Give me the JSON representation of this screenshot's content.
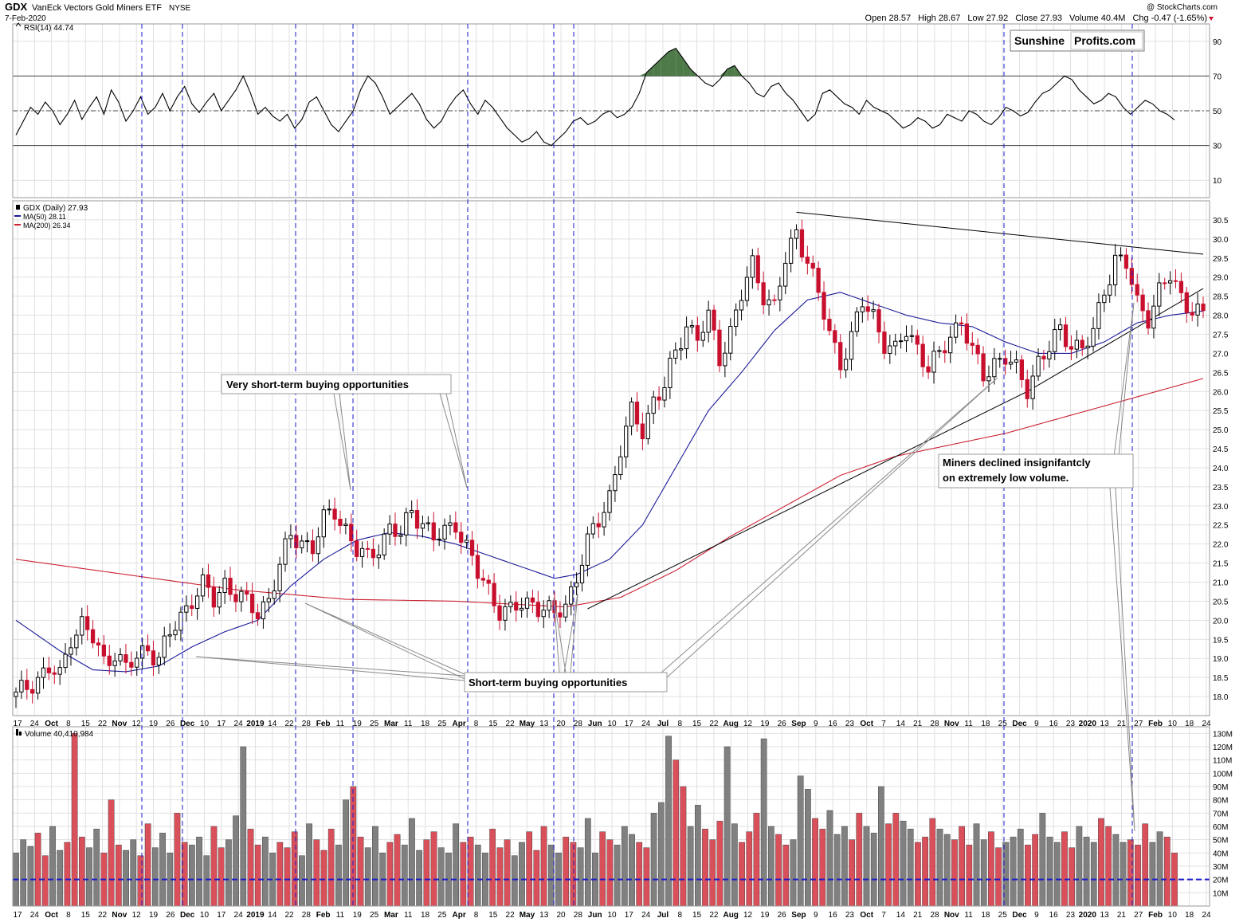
{
  "header": {
    "symbol": "GDX",
    "name": "VanEck Vectors Gold Miners ETF",
    "exchange": "NYSE",
    "date": "7-Feb-2020",
    "watermark": "@ StockCharts.com",
    "open_label": "Open",
    "open": "28.57",
    "high_label": "High",
    "high": "28.67",
    "low_label": "Low",
    "low": "27.92",
    "close_label": "Close",
    "close": "27.93",
    "volume_label": "Volume",
    "volume": "40.4M",
    "chg_label": "Chg",
    "chg": "-0.47 (-1.65%)"
  },
  "brand": {
    "part1": "Sunshine",
    "part2": "Profits.com",
    "color1": "#c8102e",
    "color2": "#000000"
  },
  "colors": {
    "up": "#000000",
    "down": "#c8102e",
    "ma50": "#1a1a99",
    "ma200": "#cc2233",
    "rsi_fill": "#4e7a4a",
    "vol_up": "#808080",
    "vol_down": "#d9505a",
    "vline": "#1a1acc"
  },
  "chart_data": [
    {
      "type": "line",
      "panel": "rsi",
      "legend": "RSI(14) 44.74",
      "ylim": [
        0,
        100
      ],
      "y_ticks": [
        10,
        30,
        50,
        70,
        90
      ],
      "levels": [
        30,
        50,
        70
      ],
      "series": [
        {
          "name": "RSI(14)",
          "values": [
            36,
            44,
            52,
            48,
            55,
            50,
            42,
            48,
            56,
            45,
            52,
            58,
            48,
            62,
            55,
            44,
            50,
            58,
            48,
            52,
            60,
            50,
            58,
            64,
            54,
            49,
            55,
            60,
            50,
            56,
            62,
            70,
            60,
            48,
            52,
            47,
            44,
            48,
            40,
            45,
            55,
            58,
            50,
            42,
            38,
            44,
            50,
            62,
            70,
            66,
            58,
            48,
            52,
            56,
            60,
            54,
            45,
            40,
            44,
            52,
            58,
            62,
            54,
            48,
            56,
            52,
            46,
            40,
            36,
            32,
            34,
            38,
            32,
            30,
            34,
            38,
            44,
            46,
            42,
            44,
            48,
            50,
            46,
            48,
            52,
            60,
            72,
            76,
            80,
            84,
            86,
            80,
            74,
            70,
            66,
            64,
            68,
            74,
            76,
            70,
            66,
            60,
            58,
            64,
            66,
            60,
            56,
            50,
            44,
            48,
            60,
            62,
            58,
            54,
            52,
            48,
            56,
            52,
            50,
            48,
            44,
            40,
            42,
            46,
            44,
            40,
            42,
            48,
            46,
            44,
            50,
            48,
            44,
            42,
            46,
            52,
            50,
            47,
            49,
            55,
            60,
            62,
            66,
            70,
            68,
            62,
            58,
            54,
            56,
            60,
            58,
            52,
            48,
            52,
            56,
            54,
            50,
            48,
            44.74
          ]
        }
      ]
    },
    {
      "type": "candlestick",
      "panel": "price",
      "legend": [
        "GDX (Daily) 27.93",
        "MA(50) 28.11",
        "MA(200) 26.34"
      ],
      "ylim": [
        17.5,
        31.0
      ],
      "y_ticks": [
        "18.0",
        "18.5",
        "19.0",
        "19.5",
        "20.0",
        "20.5",
        "21.0",
        "21.5",
        "22.0",
        "22.5",
        "23.0",
        "23.5",
        "24.0",
        "24.5",
        "25.0",
        "25.5",
        "26.0",
        "26.5",
        "27.0",
        "27.5",
        "28.0",
        "28.5",
        "29.0",
        "29.5",
        "30.0",
        "30.5"
      ],
      "close_path": [
        [
          0,
          18.0
        ],
        [
          3,
          18.4
        ],
        [
          6,
          18.7
        ],
        [
          8,
          18.5
        ],
        [
          10,
          19.6
        ],
        [
          12,
          19.9
        ],
        [
          14,
          19.5
        ],
        [
          16,
          18.9
        ],
        [
          18,
          19.2
        ],
        [
          20,
          18.7
        ],
        [
          22,
          19.0
        ],
        [
          24,
          19.3
        ],
        [
          26,
          19.0
        ],
        [
          28,
          19.6
        ],
        [
          30,
          20.1
        ],
        [
          32,
          20.6
        ],
        [
          34,
          20.9
        ],
        [
          36,
          20.5
        ],
        [
          38,
          21.0
        ],
        [
          40,
          20.7
        ],
        [
          42,
          20.4
        ],
        [
          44,
          20.2
        ],
        [
          46,
          20.6
        ],
        [
          48,
          21.4
        ],
        [
          50,
          22.2
        ],
        [
          52,
          22.1
        ],
        [
          54,
          21.9
        ],
        [
          56,
          22.6
        ],
        [
          58,
          22.9
        ],
        [
          60,
          22.4
        ],
        [
          62,
          21.8
        ],
        [
          64,
          21.6
        ],
        [
          66,
          22.0
        ],
        [
          68,
          22.4
        ],
        [
          70,
          22.2
        ],
        [
          72,
          22.9
        ],
        [
          74,
          22.6
        ],
        [
          76,
          22.1
        ],
        [
          78,
          22.3
        ],
        [
          80,
          22.6
        ],
        [
          82,
          21.9
        ],
        [
          84,
          21.2
        ],
        [
          86,
          20.8
        ],
        [
          88,
          20.3
        ],
        [
          90,
          20.2
        ],
        [
          92,
          20.4
        ],
        [
          94,
          20.5
        ],
        [
          96,
          20.3
        ],
        [
          98,
          20.1
        ],
        [
          100,
          20.4
        ],
        [
          102,
          21.2
        ],
        [
          104,
          22.0
        ],
        [
          106,
          22.6
        ],
        [
          108,
          23.3
        ],
        [
          110,
          24.5
        ],
        [
          112,
          25.4
        ],
        [
          114,
          25.0
        ],
        [
          116,
          25.8
        ],
        [
          118,
          26.1
        ],
        [
          120,
          27.0
        ],
        [
          122,
          27.8
        ],
        [
          124,
          27.4
        ],
        [
          126,
          27.9
        ],
        [
          128,
          26.9
        ],
        [
          130,
          27.6
        ],
        [
          132,
          28.5
        ],
        [
          134,
          29.3
        ],
        [
          136,
          28.6
        ],
        [
          138,
          28.2
        ],
        [
          140,
          29.4
        ],
        [
          142,
          30.2
        ],
        [
          144,
          29.5
        ],
        [
          146,
          28.5
        ],
        [
          148,
          27.5
        ],
        [
          150,
          26.8
        ],
        [
          152,
          27.4
        ],
        [
          154,
          28.3
        ],
        [
          156,
          28.0
        ],
        [
          158,
          27.3
        ],
        [
          160,
          27.0
        ],
        [
          162,
          27.6
        ],
        [
          164,
          27.2
        ],
        [
          166,
          26.6
        ],
        [
          168,
          26.9
        ],
        [
          170,
          27.5
        ],
        [
          172,
          27.9
        ],
        [
          174,
          27.0
        ],
        [
          176,
          26.4
        ],
        [
          178,
          26.8
        ],
        [
          180,
          26.9
        ],
        [
          182,
          26.5
        ],
        [
          184,
          26.1
        ],
        [
          186,
          26.8
        ],
        [
          188,
          27.1
        ],
        [
          190,
          27.6
        ],
        [
          192,
          27.3
        ],
        [
          194,
          27.1
        ],
        [
          196,
          27.5
        ],
        [
          198,
          28.7
        ],
        [
          200,
          29.5
        ],
        [
          202,
          29.3
        ],
        [
          204,
          28.3
        ],
        [
          206,
          28.0
        ],
        [
          208,
          28.6
        ],
        [
          210,
          29.0
        ],
        [
          212,
          28.5
        ],
        [
          214,
          28.2
        ],
        [
          216,
          27.93
        ]
      ],
      "ma50_path": [
        [
          0,
          20.0
        ],
        [
          8,
          19.2
        ],
        [
          14,
          18.7
        ],
        [
          20,
          18.65
        ],
        [
          26,
          18.8
        ],
        [
          32,
          19.3
        ],
        [
          38,
          19.7
        ],
        [
          44,
          20.0
        ],
        [
          50,
          20.9
        ],
        [
          56,
          21.6
        ],
        [
          62,
          22.1
        ],
        [
          68,
          22.3
        ],
        [
          74,
          22.2
        ],
        [
          80,
          22.0
        ],
        [
          86,
          21.7
        ],
        [
          92,
          21.4
        ],
        [
          98,
          21.1
        ],
        [
          102,
          21.2
        ],
        [
          108,
          21.6
        ],
        [
          114,
          22.5
        ],
        [
          120,
          24.0
        ],
        [
          126,
          25.5
        ],
        [
          132,
          26.5
        ],
        [
          138,
          27.6
        ],
        [
          144,
          28.4
        ],
        [
          150,
          28.6
        ],
        [
          156,
          28.3
        ],
        [
          162,
          28.0
        ],
        [
          168,
          27.8
        ],
        [
          174,
          27.7
        ],
        [
          180,
          27.3
        ],
        [
          186,
          27.0
        ],
        [
          192,
          27.0
        ],
        [
          198,
          27.3
        ],
        [
          204,
          27.8
        ],
        [
          210,
          28.0
        ],
        [
          216,
          28.11
        ]
      ],
      "ma200_path": [
        [
          0,
          21.6
        ],
        [
          20,
          21.2
        ],
        [
          40,
          20.8
        ],
        [
          60,
          20.55
        ],
        [
          80,
          20.5
        ],
        [
          100,
          20.35
        ],
        [
          110,
          20.6
        ],
        [
          120,
          21.3
        ],
        [
          130,
          22.2
        ],
        [
          140,
          23.0
        ],
        [
          150,
          23.8
        ],
        [
          160,
          24.3
        ],
        [
          170,
          24.6
        ],
        [
          180,
          24.9
        ],
        [
          190,
          25.3
        ],
        [
          200,
          25.7
        ],
        [
          210,
          26.1
        ],
        [
          216,
          26.34
        ]
      ],
      "trendlines": [
        [
          [
            104,
            20.3
          ],
          [
            184,
            26.0
          ],
          [
            216,
            28.7
          ]
        ],
        [
          [
            142,
            30.7
          ],
          [
            216,
            29.6
          ]
        ]
      ]
    },
    {
      "type": "bar",
      "panel": "volume",
      "legend": "Volume 40,410,984",
      "ylim": [
        0,
        135
      ],
      "y_ticks": [
        "10M",
        "20M",
        "30M",
        "40M",
        "50M",
        "60M",
        "70M",
        "80M",
        "90M",
        "100M",
        "110M",
        "120M",
        "130M"
      ],
      "average_line": 20,
      "values": [
        40,
        50,
        45,
        55,
        38,
        60,
        42,
        48,
        130,
        52,
        44,
        58,
        40,
        80,
        46,
        42,
        50,
        38,
        62,
        44,
        55,
        40,
        70,
        48,
        46,
        52,
        38,
        60,
        44,
        50,
        68,
        120,
        58,
        46,
        52,
        40,
        48,
        44,
        56,
        38,
        62,
        50,
        42,
        58,
        46,
        80,
        90,
        52,
        44,
        60,
        40,
        48,
        54,
        46,
        66,
        42,
        50,
        56,
        44,
        40,
        62,
        48,
        52,
        46,
        40,
        58,
        44,
        50,
        38,
        48,
        56,
        42,
        60,
        46,
        40,
        52,
        48,
        44,
        66,
        40,
        56,
        50,
        46,
        60,
        54,
        48,
        44,
        70,
        78,
        128,
        110,
        90,
        60,
        76,
        58,
        50,
        64,
        120,
        62,
        48,
        56,
        70,
        126,
        60,
        54,
        46,
        50,
        98,
        88,
        66,
        58,
        72,
        54,
        60,
        50,
        70,
        60,
        55,
        90,
        62,
        70,
        64,
        58,
        48,
        52,
        66,
        58,
        54,
        50,
        60,
        46,
        62,
        50,
        56,
        44,
        48,
        52,
        58,
        46,
        54,
        70,
        52,
        48,
        56,
        44,
        60,
        52,
        48,
        66,
        60,
        54,
        48,
        50,
        46,
        62,
        48,
        56,
        52,
        40
      ]
    }
  ],
  "x_axis": {
    "labels": [
      "17",
      "24",
      "Oct",
      "8",
      "15",
      "22",
      "Nov",
      "12",
      "19",
      "26",
      "Dec",
      "10",
      "17",
      "24",
      "2019",
      "14",
      "22",
      "28",
      "Feb",
      "11",
      "19",
      "25",
      "Mar",
      "11",
      "18",
      "25",
      "Apr",
      "8",
      "15",
      "22",
      "May",
      "13",
      "20",
      "28",
      "Jun",
      "10",
      "17",
      "24",
      "Jul",
      "8",
      "15",
      "22",
      "Aug",
      "12",
      "19",
      "26",
      "Sep",
      "9",
      "16",
      "23",
      "Oct",
      "7",
      "14",
      "21",
      "28",
      "Nov",
      "11",
      "18",
      "25",
      "Dec",
      "9",
      "16",
      "23",
      "2020",
      "13",
      "21",
      "27",
      "Feb",
      "10",
      "18",
      "24"
    ],
    "bold": [
      "Oct",
      "Nov",
      "Dec",
      "2019",
      "Feb",
      "Mar",
      "Apr",
      "May",
      "Jun",
      "Jul",
      "Aug",
      "Sep",
      "2020"
    ]
  },
  "annotations": {
    "very_short": "Very short-term buying opportunities",
    "short": "Short-term buying opportunities",
    "miners_line1": "Miners declined insignifantcly",
    "miners_line2": "on extremely low volume."
  }
}
